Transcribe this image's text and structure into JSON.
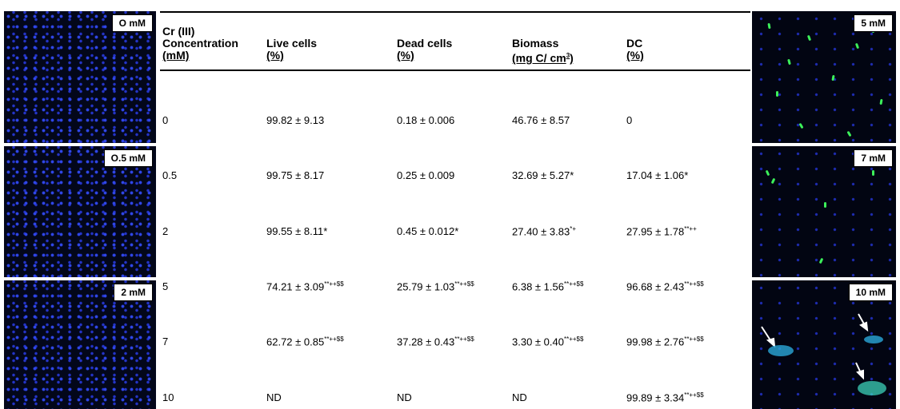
{
  "left_images": [
    {
      "label": "O mM"
    },
    {
      "label": "O.5 mM"
    },
    {
      "label": "2 mM"
    }
  ],
  "right_images": [
    {
      "label": "5 mM"
    },
    {
      "label": "7 mM"
    },
    {
      "label": "10 mM"
    }
  ],
  "table": {
    "header": [
      {
        "lines": [
          "Cr (III)",
          "Concentration",
          "(mM)"
        ]
      },
      {
        "lines": [
          "Live cells",
          "(%)"
        ]
      },
      {
        "lines": [
          "Dead cells",
          "(%)"
        ]
      },
      {
        "lines": [
          "Biomass",
          "(mg C/ cm"
        ],
        "sup": "3",
        "tail": ")"
      },
      {
        "lines": [
          "DC",
          "(%)"
        ]
      }
    ],
    "rows": [
      [
        {
          "text": "0"
        },
        {
          "text": "99.82 ± 9.13"
        },
        {
          "text": "0.18 ± 0.006"
        },
        {
          "text": "46.76 ± 8.57"
        },
        {
          "text": "0"
        }
      ],
      [
        {
          "text": "0.5"
        },
        {
          "text": "99.75 ± 8.17"
        },
        {
          "text": "0.25 ± 0.009"
        },
        {
          "text": "32.69 ± 5.27*"
        },
        {
          "text": "17.04 ± 1.06*"
        }
      ],
      [
        {
          "text": "2"
        },
        {
          "text": "99.55 ± 8.11*"
        },
        {
          "text": "0.45 ± 0.012*"
        },
        {
          "text": "27.40 ± 3.83",
          "sup": "*+"
        },
        {
          "text": "27.95 ± 1.78",
          "sup": "**++"
        }
      ],
      [
        {
          "text": "5"
        },
        {
          "text": "74.21 ± 3.09",
          "sup": "**++$$"
        },
        {
          "text": "25.79 ± 1.03",
          "sup": "**++$$"
        },
        {
          "text": "6.38 ± 1.56",
          "sup": "**++$$"
        },
        {
          "text": "96.68 ± 2.43",
          "sup": "**++$$"
        }
      ],
      [
        {
          "text": "7"
        },
        {
          "text": "62.72 ± 0.85",
          "sup": "**++$$"
        },
        {
          "text": "37.28 ± 0.43",
          "sup": "**++$$"
        },
        {
          "text": "3.30 ± 0.40",
          "sup": "**++$$"
        },
        {
          "text": "99.98 ± 2.76",
          "sup": "**++$$"
        }
      ],
      [
        {
          "text": "10"
        },
        {
          "text": "ND"
        },
        {
          "text": "ND"
        },
        {
          "text": "ND"
        },
        {
          "text": "99.89 ± 3.34",
          "sup": "**++$$"
        }
      ]
    ]
  }
}
